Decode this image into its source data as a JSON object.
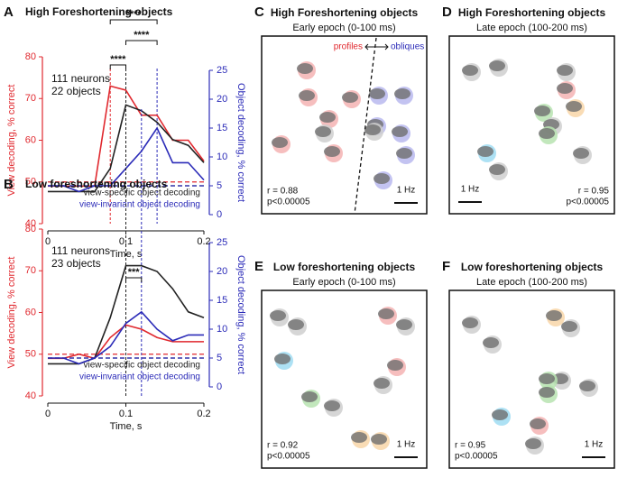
{
  "chart_data": [
    {
      "type": "line",
      "panel_label": "A",
      "title": "High Foreshortening objects",
      "x": [
        0,
        0.02,
        0.04,
        0.06,
        0.08,
        0.1,
        0.12,
        0.14,
        0.16,
        0.18,
        0.2
      ],
      "xlim": [
        0,
        0.2
      ],
      "xticks": [
        0,
        0.1,
        0.2
      ],
      "xlabel": "Time, s",
      "ylim": [
        40,
        80
      ],
      "yticks": [
        40,
        50,
        60,
        70,
        80
      ],
      "ylabel": "View decoding, % correct",
      "ycolor": "#e0282e",
      "y2lim": [
        0,
        25
      ],
      "y2ticks": [
        0,
        5,
        10,
        15,
        20,
        25
      ],
      "y2label": "Object decoding, % correct",
      "y2color": "#2b2bb8",
      "annotations": [
        "111 neurons",
        "22 objects"
      ],
      "series": [
        {
          "color": "#e0282e",
          "values": [
            49,
            49,
            49,
            49,
            73,
            72,
            66,
            66,
            60,
            60,
            55
          ],
          "chance": 50
        },
        {
          "name": "view-specific object decoding",
          "color": "#222222",
          "axis": "y2",
          "values": [
            4,
            4,
            4,
            4,
            8,
            19,
            18,
            16,
            13,
            12,
            9
          ],
          "chance": 5
        },
        {
          "name": "view-invariant object decoding",
          "color": "#2b2bb8",
          "axis": "y2",
          "values": [
            5,
            5,
            4,
            5,
            5,
            8,
            11,
            15,
            9,
            9,
            6
          ],
          "chance": 5
        }
      ],
      "vlines": [
        {
          "x": 0.08,
          "color": "#e0282e"
        },
        {
          "x": 0.1,
          "color": "#222222"
        },
        {
          "x": 0.14,
          "color": "#2b2bb8"
        }
      ],
      "brackets": [
        {
          "x": [
            0.08,
            0.1
          ],
          "label": "****"
        },
        {
          "x": [
            0.1,
            0.14
          ],
          "label": "****"
        },
        {
          "x": [
            0.08,
            0.14
          ],
          "label": "****"
        }
      ]
    },
    {
      "type": "line",
      "panel_label": "B",
      "title": "Low foreshortening objects",
      "x": [
        0,
        0.02,
        0.04,
        0.06,
        0.08,
        0.1,
        0.12,
        0.14,
        0.16,
        0.18,
        0.2
      ],
      "xlim": [
        0,
        0.2
      ],
      "xticks": [
        0,
        0.1,
        0.2
      ],
      "xlabel": "Time, s",
      "ylim": [
        40,
        80
      ],
      "yticks": [
        40,
        50,
        60,
        70,
        80
      ],
      "ylabel": "View decoding, % correct",
      "ycolor": "#e0282e",
      "y2lim": [
        0,
        25
      ],
      "y2ticks": [
        0,
        5,
        10,
        15,
        20,
        25
      ],
      "y2label": "Object decoding, % correct",
      "y2color": "#2b2bb8",
      "annotations": [
        "111 neurons",
        "23 objects"
      ],
      "series": [
        {
          "color": "#e0282e",
          "values": [
            49,
            49,
            50,
            49,
            54,
            57,
            56,
            54,
            53,
            53,
            53
          ],
          "chance": 50
        },
        {
          "name": "view-specific object decoding",
          "color": "#222222",
          "axis": "y2",
          "values": [
            4,
            4,
            4,
            5,
            12,
            21,
            21,
            20,
            17,
            13,
            12
          ],
          "chance": 5
        },
        {
          "name": "view-invariant object decoding",
          "color": "#2b2bb8",
          "axis": "y2",
          "values": [
            5,
            5,
            4,
            5,
            7,
            11,
            13,
            10,
            8,
            9,
            9
          ],
          "chance": 5
        }
      ],
      "vlines": [
        {
          "x": 0.1,
          "color": "#222222"
        },
        {
          "x": 0.12,
          "color": "#2b2bb8"
        }
      ],
      "brackets": [
        {
          "x": [
            0.1,
            0.12
          ],
          "label": "***"
        }
      ]
    }
  ],
  "embeddings": [
    {
      "label": "C",
      "title": "High Foreshortening objects",
      "subtitle": "Early epoch (0-100 ms)",
      "r": "r = 0.88",
      "p": "p<0.00005",
      "scale": "1 Hz",
      "left_note": "profiles",
      "right_note": "obliques"
    },
    {
      "label": "D",
      "title": "High Foreshortening objects",
      "subtitle": "Late epoch (100-200 ms)",
      "r": "r = 0.95",
      "p": "p<0.00005",
      "scale": "1 Hz"
    },
    {
      "label": "E",
      "title": "Low foreshortening objects",
      "subtitle": "Early epoch (0-100 ms)",
      "r": "r = 0.92",
      "p": "p<0.00005",
      "scale": "1 Hz"
    },
    {
      "label": "F",
      "title": "Low foreshortening objects",
      "subtitle": "Late epoch (100-200 ms)",
      "r": "r = 0.95",
      "p": "p<0.00005",
      "scale": "1 Hz"
    }
  ]
}
